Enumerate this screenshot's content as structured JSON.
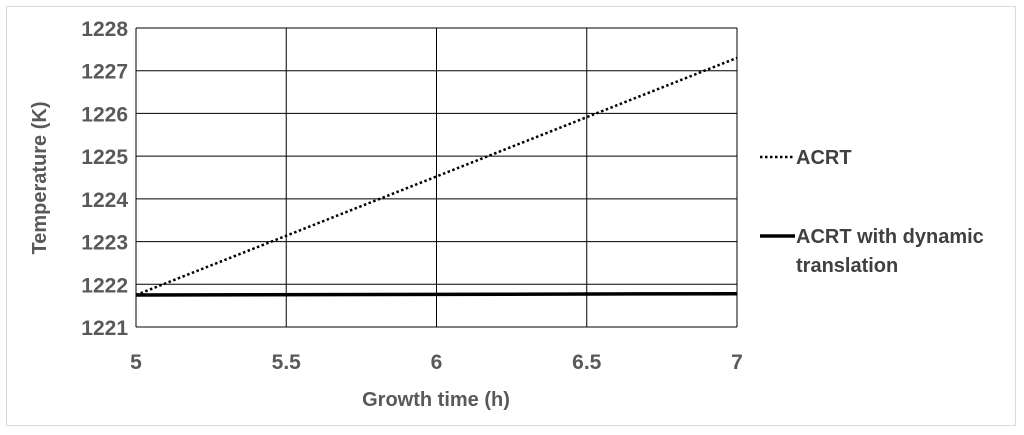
{
  "chart_data": {
    "type": "line",
    "title": "",
    "xlabel": "Growth time (h)",
    "ylabel": "Temperature (K)",
    "xlim": [
      5,
      7
    ],
    "ylim": [
      1221,
      1228
    ],
    "x_ticks": [
      "5",
      "5.5",
      "6",
      "6.5",
      "7"
    ],
    "y_ticks": [
      "1221",
      "1222",
      "1223",
      "1224",
      "1225",
      "1226",
      "1227",
      "1228"
    ],
    "grid": true,
    "legend_position": "right",
    "series": [
      {
        "name": "ACRT",
        "line_style": "dotted",
        "color": "#000000",
        "x": [
          5,
          7
        ],
        "y": [
          1221.75,
          1227.3
        ]
      },
      {
        "name": "ACRT with dynamic translation",
        "legend_lines": [
          "ACRT with dynamic",
          "translation"
        ],
        "line_style": "solid",
        "color": "#000000",
        "x": [
          5,
          7
        ],
        "y": [
          1221.75,
          1221.78
        ]
      }
    ]
  }
}
